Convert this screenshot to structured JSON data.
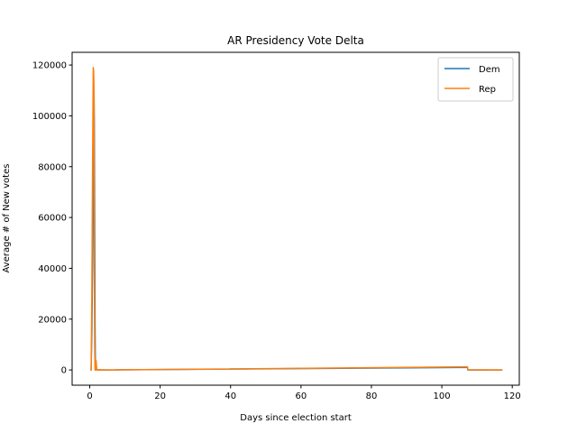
{
  "chart_data": {
    "type": "line",
    "title": "AR Presidency Vote Delta",
    "xlabel": "Days since election start",
    "ylabel": "Average # of New votes",
    "xlim": [
      -5,
      122
    ],
    "ylim": [
      -6000,
      125000
    ],
    "xticks": [
      0,
      20,
      40,
      60,
      80,
      100,
      120
    ],
    "yticks": [
      0,
      20000,
      40000,
      60000,
      80000,
      100000,
      120000
    ],
    "grid": false,
    "legend_position": "top-right",
    "series": [
      {
        "name": "Dem",
        "color": "#1f77b4",
        "points": [
          [
            0.2,
            0
          ],
          [
            0.4,
            0
          ],
          [
            0.6,
            15000
          ],
          [
            0.8,
            40000
          ],
          [
            1.0,
            65000
          ],
          [
            1.1,
            101000
          ],
          [
            1.2,
            111000
          ],
          [
            1.3,
            98000
          ],
          [
            1.4,
            60000
          ],
          [
            1.5,
            20000
          ],
          [
            1.6,
            0
          ],
          [
            1.7,
            3500
          ],
          [
            1.8,
            0
          ],
          [
            2.0,
            100
          ],
          [
            5,
            0
          ],
          [
            107.3,
            1000
          ],
          [
            107.4,
            0
          ],
          [
            117.2,
            0
          ]
        ]
      },
      {
        "name": "Rep",
        "color": "#ff7f0e",
        "points": [
          [
            0.2,
            0
          ],
          [
            0.4,
            0
          ],
          [
            0.6,
            30000
          ],
          [
            0.8,
            80000
          ],
          [
            1.0,
            119000
          ],
          [
            1.1,
            118000
          ],
          [
            1.2,
            112000
          ],
          [
            1.3,
            40000
          ],
          [
            1.4,
            10000
          ],
          [
            1.5,
            0
          ],
          [
            1.6,
            3800
          ],
          [
            1.7,
            0
          ],
          [
            1.8,
            3800
          ],
          [
            2.0,
            0
          ],
          [
            5,
            0
          ],
          [
            107.3,
            1200
          ],
          [
            107.4,
            100
          ],
          [
            117.2,
            0
          ]
        ]
      }
    ]
  }
}
